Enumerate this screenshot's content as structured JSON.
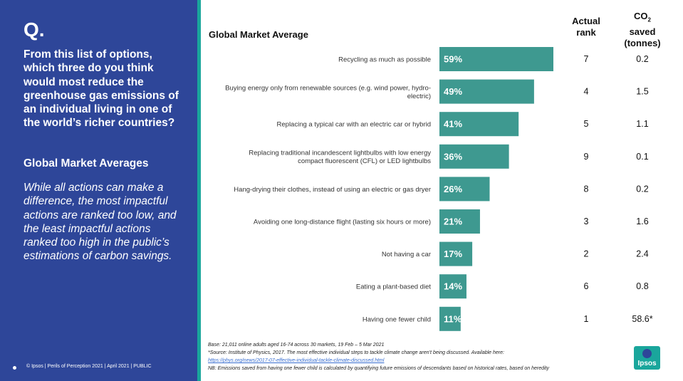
{
  "panel": {
    "q_label": "Q.",
    "question": "From this list of options, which three do you think would most reduce the greenhouse gas emissions of an individual living in one of the world’s richer countries?",
    "subtitle": "Global Market Averages",
    "description": "While all actions can make a difference, the most impactful actions are ranked too low, and the least impactful actions ranked too high in the public’s estimations of carbon savings.",
    "footer": "© Ipsos | Perils of Perception 2021 | April 2021 | PUBLIC"
  },
  "headers": {
    "actual_rank": "Actual rank",
    "co2_prefix": "CO",
    "co2_sub": "2",
    "co2_suffix": "saved (tonnes)"
  },
  "chart_data": {
    "type": "bar",
    "orientation": "horizontal",
    "title": "Global Market Average",
    "categories": [
      "Recycling as much as possible",
      "Buying energy only from renewable sources (e.g. wind power, hydro-electric)",
      "Replacing a typical car with an electric car or hybrid",
      "Replacing traditional incandescent lightbulbs with low energy compact fluorescent (CFL) or LED lightbulbs",
      "Hang-drying their clothes, instead of using an electric or gas dryer",
      "Avoiding one long-distance flight (lasting six hours or more)",
      "Not having a car",
      "Eating a plant-based diet",
      "Having one fewer child"
    ],
    "category_lines": [
      [
        "Recycling as much as possible"
      ],
      [
        "Buying energy only from renewable sources (e.g. wind power, hydro-",
        "electric)"
      ],
      [
        "Replacing a typical car with an electric car or hybrid"
      ],
      [
        "Replacing traditional incandescent lightbulbs with low energy",
        "compact fluorescent (CFL) or LED lightbulbs"
      ],
      [
        "Hang-drying their clothes, instead of using an electric or gas dryer"
      ],
      [
        "Avoiding one long-distance flight (lasting six hours or more)"
      ],
      [
        "Not having a car"
      ],
      [
        "Eating a plant-based diet"
      ],
      [
        "Having one fewer child"
      ]
    ],
    "values": [
      59,
      49,
      41,
      36,
      26,
      21,
      17,
      14,
      11
    ],
    "value_labels": [
      "59%",
      "49%",
      "41%",
      "36%",
      "26%",
      "21%",
      "17%",
      "14%",
      "11%"
    ],
    "actual_rank": [
      "7",
      "4",
      "5",
      "9",
      "8",
      "3",
      "2",
      "6",
      "1"
    ],
    "co2_saved": [
      "0.2",
      "1.5",
      "1.1",
      "0.1",
      "0.2",
      "1.6",
      "2.4",
      "0.8",
      "58.6*"
    ],
    "bar_color": "#3e9990",
    "xlim": [
      0,
      100
    ],
    "grid": false
  },
  "notes": {
    "base": "Base: 21,011 online adults aged 16-74 across 30 markets,  19 Feb – 5 Mar 2021",
    "source": "*Source: Institute of Physics, 2017. The most effective individual steps to tackle climate change aren’t being discussed. Available here:",
    "link": "https://phys.org/news/2017-07-effective-individual-tackle-climate-discussed.html",
    "nb": "NB: Emissions saved from having one fewer child is calculated by quantifying future emissions of descendants based on historical rates, based on heredity"
  },
  "logo": {
    "text": "Ipsos",
    "color": "#1aa69c"
  },
  "colors": {
    "panel": "#2e4699",
    "accent": "#1aa69c"
  }
}
